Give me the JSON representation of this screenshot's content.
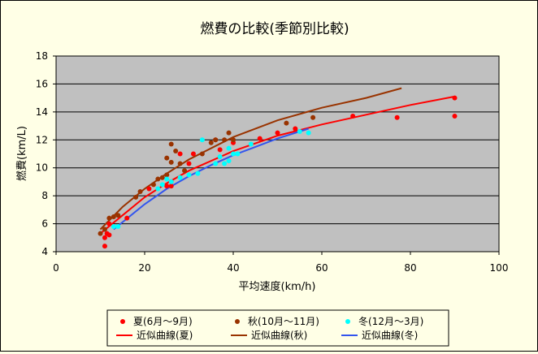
{
  "chart_data": {
    "type": "scatter",
    "title": "燃費の比較(季節別比較)",
    "xlabel": "平均速度(km/h)",
    "ylabel": "燃費(km/L)",
    "xlim": [
      0,
      100
    ],
    "ylim": [
      4,
      18
    ],
    "x_ticks": [
      0,
      20,
      40,
      60,
      80,
      100
    ],
    "y_ticks": [
      4,
      6,
      8,
      10,
      12,
      14,
      16,
      18
    ],
    "grid": "horizontal",
    "legend_position": "bottom",
    "plot_background": "#c0c0c0",
    "series": [
      {
        "name": "夏(6月〜9月)",
        "kind": "scatter",
        "color": "#ff0000",
        "points": [
          [
            11,
            4.4
          ],
          [
            11,
            5.0
          ],
          [
            11.5,
            5.3
          ],
          [
            12,
            6.0
          ],
          [
            12,
            5.2
          ],
          [
            16,
            6.4
          ],
          [
            21,
            8.5
          ],
          [
            25,
            8.7
          ],
          [
            26,
            8.7
          ],
          [
            28,
            11.0
          ],
          [
            30,
            10.3
          ],
          [
            31,
            11.0
          ],
          [
            36,
            12.0
          ],
          [
            37,
            11.3
          ],
          [
            40,
            11.8
          ],
          [
            46,
            12.1
          ],
          [
            50,
            12.5
          ],
          [
            54,
            12.8
          ],
          [
            67,
            13.7
          ],
          [
            77,
            13.6
          ],
          [
            90,
            15.0
          ],
          [
            90,
            13.7
          ]
        ]
      },
      {
        "name": "秋(10月〜11月)",
        "kind": "scatter",
        "color": "#993300",
        "points": [
          [
            10,
            5.3
          ],
          [
            11,
            5.6
          ],
          [
            12,
            6.4
          ],
          [
            13,
            6.5
          ],
          [
            14,
            6.6
          ],
          [
            18,
            7.9
          ],
          [
            19,
            8.3
          ],
          [
            22,
            8.8
          ],
          [
            23,
            9.2
          ],
          [
            24,
            9.3
          ],
          [
            25,
            10.7
          ],
          [
            25,
            9.5
          ],
          [
            26,
            9.0
          ],
          [
            26,
            10.4
          ],
          [
            26,
            11.7
          ],
          [
            27,
            11.2
          ],
          [
            28,
            10.3
          ],
          [
            29,
            9.8
          ],
          [
            33,
            11.0
          ],
          [
            35,
            11.8
          ],
          [
            36,
            12.0
          ],
          [
            38,
            12.0
          ],
          [
            39,
            12.5
          ],
          [
            40,
            12.0
          ],
          [
            52,
            13.2
          ],
          [
            58,
            13.6
          ]
        ]
      },
      {
        "name": "冬(12月〜3月)",
        "kind": "scatter",
        "color": "#00ffff",
        "points": [
          [
            13,
            5.8
          ],
          [
            14,
            5.8
          ],
          [
            23,
            8.5
          ],
          [
            24,
            8.8
          ],
          [
            25,
            9.2
          ],
          [
            26,
            9.0
          ],
          [
            28,
            9.3
          ],
          [
            30,
            9.5
          ],
          [
            32,
            9.6
          ],
          [
            33,
            12.0
          ],
          [
            36,
            10.3
          ],
          [
            37,
            10.8
          ],
          [
            38,
            10.3
          ],
          [
            39,
            10.5
          ],
          [
            39,
            11.4
          ],
          [
            40,
            11.0
          ],
          [
            41,
            11.0
          ],
          [
            44,
            11.7
          ],
          [
            55,
            12.6
          ],
          [
            57,
            12.5
          ]
        ]
      },
      {
        "name": "近似曲線(夏)",
        "kind": "line",
        "color": "#ff0000",
        "points": [
          [
            10,
            5.3
          ],
          [
            15,
            6.6
          ],
          [
            20,
            7.9
          ],
          [
            25,
            8.9
          ],
          [
            30,
            9.8
          ],
          [
            40,
            11.2
          ],
          [
            50,
            12.3
          ],
          [
            60,
            13.1
          ],
          [
            70,
            13.8
          ],
          [
            80,
            14.5
          ],
          [
            90,
            15.1
          ]
        ]
      },
      {
        "name": "近似曲線(秋)",
        "kind": "line",
        "color": "#993300",
        "points": [
          [
            10,
            5.6
          ],
          [
            15,
            7.2
          ],
          [
            20,
            8.5
          ],
          [
            25,
            9.6
          ],
          [
            30,
            10.6
          ],
          [
            40,
            12.2
          ],
          [
            50,
            13.4
          ],
          [
            60,
            14.3
          ],
          [
            70,
            15.0
          ],
          [
            78,
            15.7
          ]
        ]
      },
      {
        "name": "近似曲線(冬)",
        "kind": "line",
        "color": "#3355ee",
        "points": [
          [
            13,
            5.6
          ],
          [
            20,
            7.4
          ],
          [
            25,
            8.5
          ],
          [
            30,
            9.4
          ],
          [
            35,
            10.2
          ],
          [
            40,
            10.9
          ],
          [
            45,
            11.5
          ],
          [
            50,
            12.1
          ],
          [
            57,
            12.8
          ]
        ]
      }
    ]
  }
}
